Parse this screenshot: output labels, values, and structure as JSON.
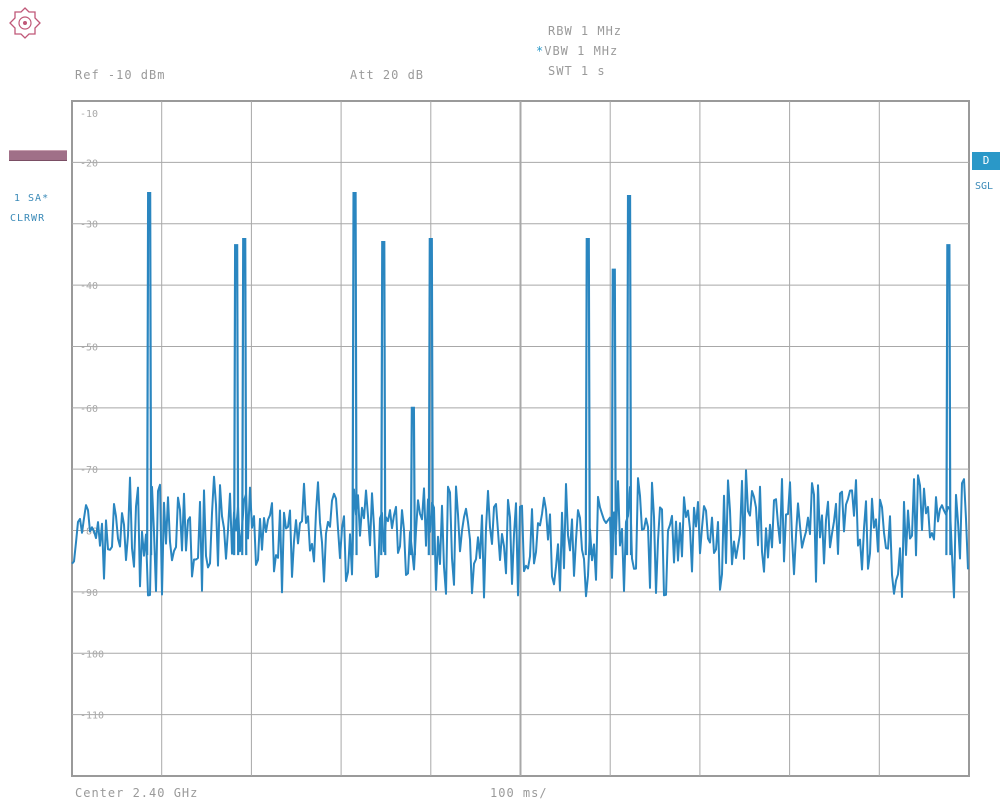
{
  "header": {
    "rbw": "RBW 1 MHz",
    "vbw_marker": "*",
    "vbw": "VBW 1 MHz",
    "swt": "SWT 1 s",
    "ref_level": "Ref -10 dBm",
    "attenuation": "Att 20 dB"
  },
  "side_left": {
    "trace_mode": "1 SA*",
    "trace_clear": "CLRWR"
  },
  "side_right": {
    "detector_box": "D",
    "sweep_mode": "SGL"
  },
  "footer": {
    "center": "Center 2.40 GHz",
    "span_per_div": "100 ms/"
  },
  "colors": {
    "trace": "#2a86c0",
    "grid": "#a8a8a8",
    "accent": "#2a98c8"
  },
  "chart_data": {
    "type": "line",
    "y_tick_labels": [
      "-10",
      "-20",
      "-30",
      "-40",
      "-50",
      "-60",
      "-70",
      "-80",
      "-90",
      "-100",
      "-110"
    ],
    "ylim": [
      -120,
      -10
    ],
    "y_unit": "dBm",
    "x_unit": "ms",
    "xlim": [
      0,
      1000
    ],
    "grid": true,
    "noise_floor_dbm": -80,
    "noise_floor_range": [
      -91,
      -70
    ],
    "spikes": [
      {
        "x": 86,
        "y": -25
      },
      {
        "x": 183,
        "y": -33.5
      },
      {
        "x": 192,
        "y": -32.5
      },
      {
        "x": 315,
        "y": -25
      },
      {
        "x": 347,
        "y": -33
      },
      {
        "x": 380,
        "y": -60
      },
      {
        "x": 400,
        "y": -32.5
      },
      {
        "x": 575,
        "y": -32.5
      },
      {
        "x": 604,
        "y": -37.5
      },
      {
        "x": 621,
        "y": -25.5
      },
      {
        "x": 977,
        "y": -33.5
      }
    ]
  }
}
